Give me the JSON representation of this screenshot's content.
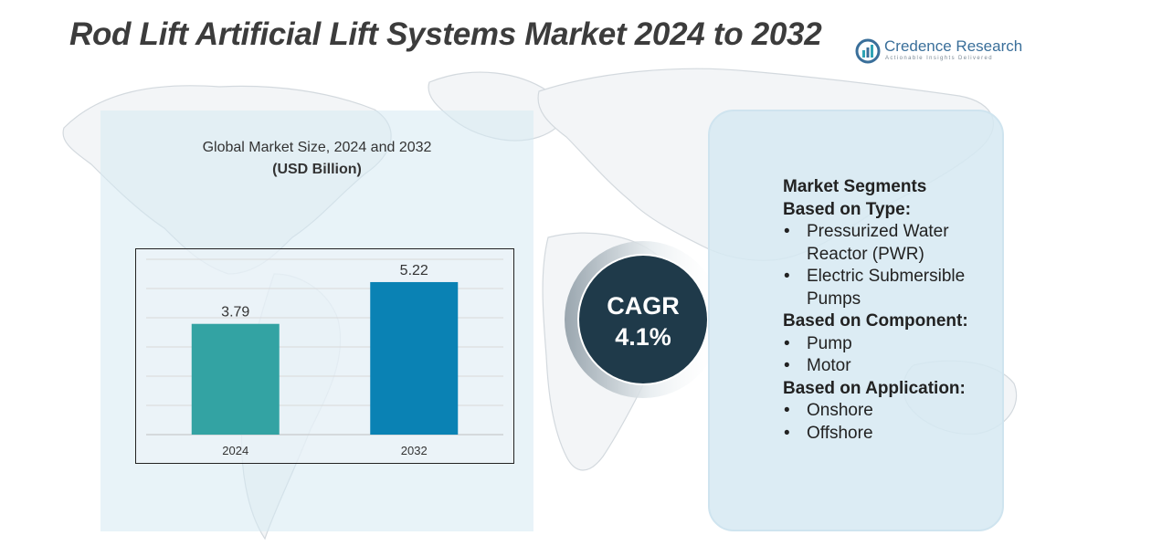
{
  "title": "Rod Lift Artificial Lift Systems Market 2024 to 2032",
  "logo": {
    "name": "Credence Research",
    "tagline": "Actionable Insights Delivered"
  },
  "chart": {
    "subtitle": "Global Market Size, 2024 and 2032",
    "unit": "(USD Billion)"
  },
  "chart_data": {
    "type": "bar",
    "title": "Global Market Size, 2024 and 2032",
    "ylabel": "(USD Billion)",
    "xlabel": "",
    "categories": [
      "2024",
      "2032"
    ],
    "values": [
      3.79,
      5.22
    ],
    "value_labels": [
      "3.79",
      "5.22"
    ],
    "colors": [
      "#33a3a3",
      "#0a82b4"
    ],
    "ylim": [
      0,
      6
    ],
    "grid": true
  },
  "cagr": {
    "label": "CAGR",
    "value": "4.1%"
  },
  "segments": {
    "heading": "Market Segments",
    "groups": [
      {
        "title": "Based on Type:",
        "items": [
          "Pressurized Water Reactor (PWR)",
          "Electric Submersible Pumps"
        ]
      },
      {
        "title": "Based on Component:",
        "items": [
          "Pump",
          "Motor"
        ]
      },
      {
        "title": "Based on Application:",
        "items": [
          "Onshore",
          "Offshore"
        ]
      }
    ]
  },
  "colors": {
    "panel": "#d6e9f2",
    "cagr_circle": "#1f3a4a",
    "title_text": "#3c3c3c"
  }
}
